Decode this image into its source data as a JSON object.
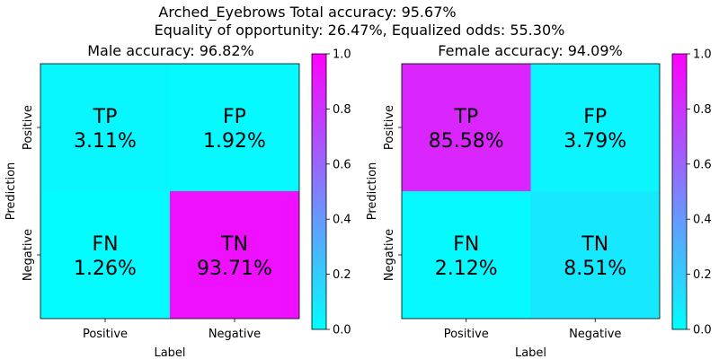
{
  "figure": {
    "suptitle_line1": "Arched_Eyebrows   Total accuracy: 95.67%",
    "suptitle_line2": "Equality of opportunity: 26.47%, Equalized odds: 55.30%"
  },
  "colormap": {
    "low": "#00ffff",
    "high": "#ff00ff",
    "name": "cool"
  },
  "chart_data": [
    {
      "type": "heatmap",
      "title": "Male accuracy: 96.82%",
      "xlabel": "Label",
      "ylabel": "Prediction",
      "x_categories": [
        "Positive",
        "Negative"
      ],
      "y_categories": [
        "Positive",
        "Negative"
      ],
      "cells": [
        [
          {
            "code": "TP",
            "value": 3.11,
            "text": "3.11%"
          },
          {
            "code": "FP",
            "value": 1.92,
            "text": "1.92%"
          }
        ],
        [
          {
            "code": "FN",
            "value": 1.26,
            "text": "1.26%"
          },
          {
            "code": "TN",
            "value": 93.71,
            "text": "93.71%"
          }
        ]
      ],
      "colorbar": {
        "range": [
          0.0,
          1.0
        ],
        "ticks": [
          "0.0",
          "0.2",
          "0.4",
          "0.6",
          "0.8",
          "1.0"
        ]
      }
    },
    {
      "type": "heatmap",
      "title": "Female accuracy: 94.09%",
      "xlabel": "Label",
      "ylabel": "Prediction",
      "x_categories": [
        "Positive",
        "Negative"
      ],
      "y_categories": [
        "Positive",
        "Negative"
      ],
      "cells": [
        [
          {
            "code": "TP",
            "value": 85.58,
            "text": "85.58%"
          },
          {
            "code": "FP",
            "value": 3.79,
            "text": "3.79%"
          }
        ],
        [
          {
            "code": "FN",
            "value": 2.12,
            "text": "2.12%"
          },
          {
            "code": "TN",
            "value": 8.51,
            "text": "8.51%"
          }
        ]
      ],
      "colorbar": {
        "range": [
          0.0,
          1.0
        ],
        "ticks": [
          "0.0",
          "0.2",
          "0.4",
          "0.6",
          "0.8",
          "1.0"
        ]
      }
    }
  ]
}
